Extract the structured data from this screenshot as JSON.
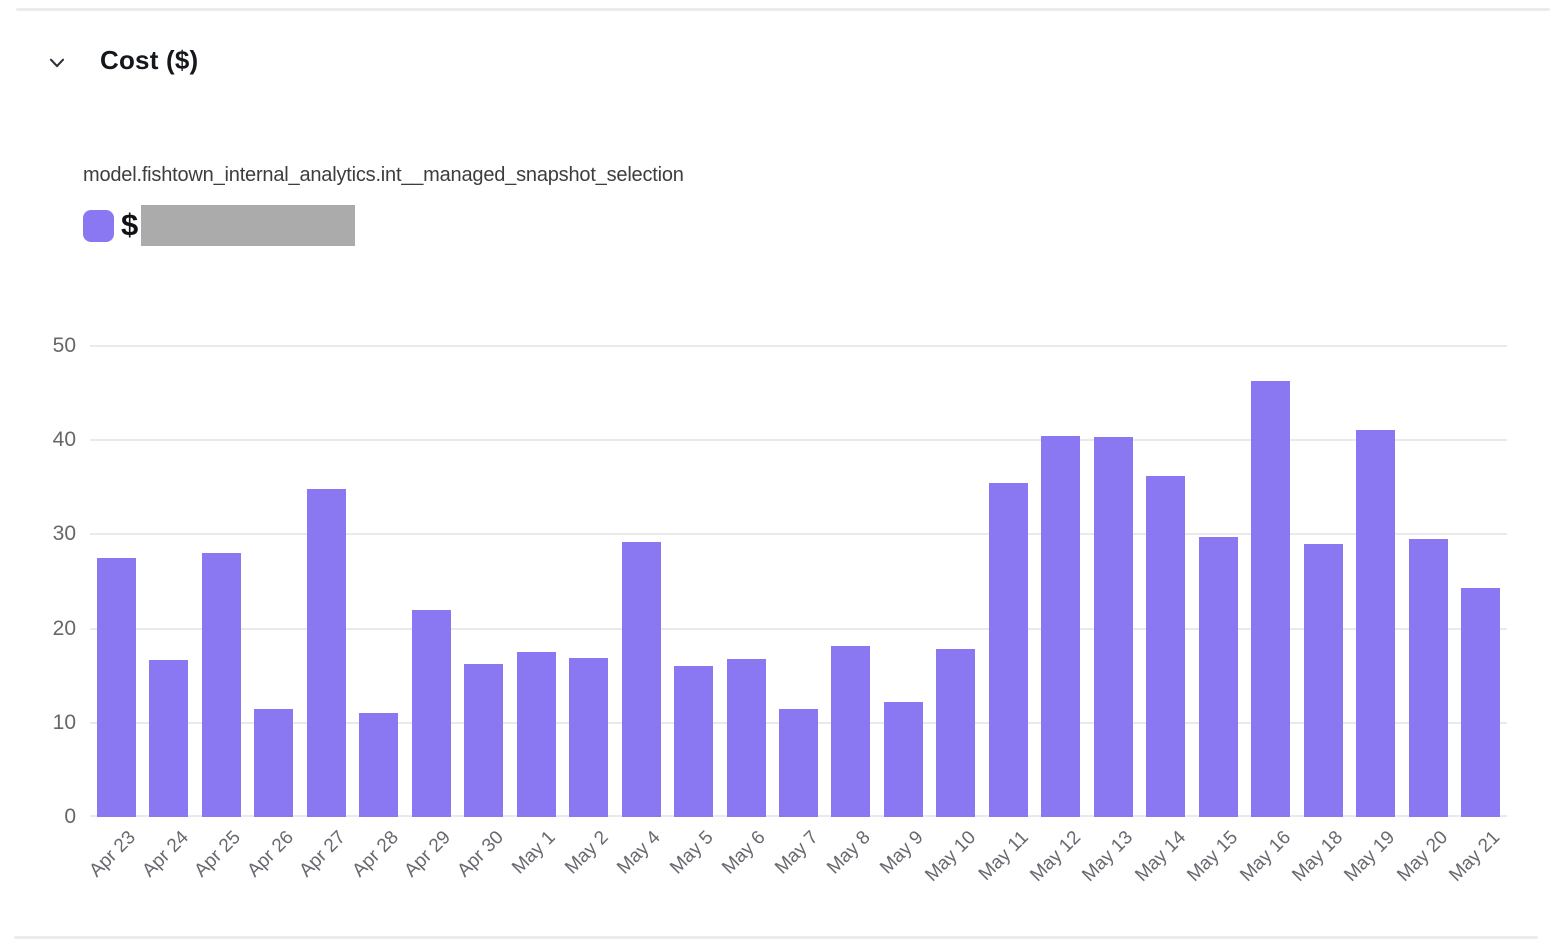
{
  "panel": {
    "title": "Cost ($)",
    "collapse_icon": "chevron-down-icon",
    "collapsed": false
  },
  "colors": {
    "bar": "#8a78f2",
    "legend_swatch": "#8a78f2",
    "redacted_value": "#ababab",
    "gridline": "#eaeaea",
    "y_axis_label": "#66666b",
    "x_axis_label": "#6b6770",
    "title_text": "#14171c",
    "subtitle_text": "#3d3d3f"
  },
  "chart_data": {
    "type": "bar",
    "title": "model.fishtown_internal_analytics.int__managed_snapshot_selection",
    "legend": {
      "position": "top-left",
      "entries": [
        {
          "swatch_color": "#8a78f2",
          "label": "$",
          "value_redacted": true
        }
      ]
    },
    "categories": [
      "Apr 23",
      "Apr 24",
      "Apr 25",
      "Apr 26",
      "Apr 27",
      "Apr 28",
      "Apr 29",
      "Apr 30",
      "May 1",
      "May 2",
      "May 4",
      "May 5",
      "May 6",
      "May 7",
      "May 8",
      "May 9",
      "May 10",
      "May 11",
      "May 12",
      "May 13",
      "May 14",
      "May 15",
      "May 16",
      "May 18",
      "May 19",
      "May 20",
      "May 21"
    ],
    "values": [
      27.5,
      16.7,
      28.0,
      11.5,
      34.8,
      11.0,
      22.0,
      16.2,
      17.5,
      16.9,
      29.2,
      16.0,
      16.8,
      11.5,
      18.2,
      12.2,
      17.8,
      35.5,
      40.5,
      40.3,
      36.2,
      29.7,
      46.3,
      29.0,
      41.1,
      29.5,
      24.3
    ],
    "xlabel": "",
    "ylabel": "",
    "ylim": [
      0,
      50
    ],
    "yticks": [
      0,
      10,
      20,
      30,
      40,
      50
    ],
    "grid": true,
    "x_label_rotation": -45
  }
}
